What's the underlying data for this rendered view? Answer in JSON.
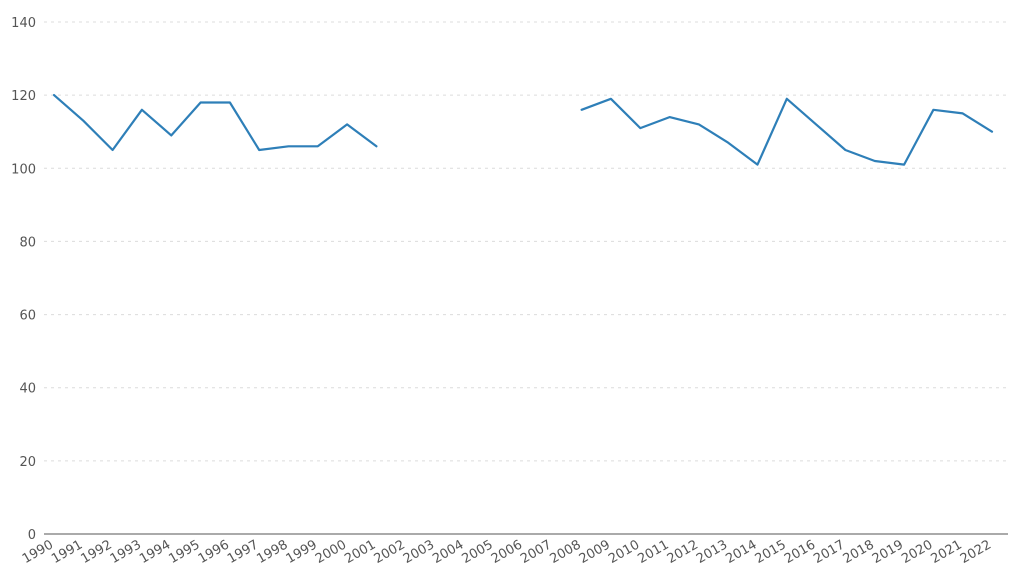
{
  "chart_data": {
    "type": "line",
    "title": "",
    "xlabel": "",
    "ylabel": "",
    "ylim": [
      0,
      140
    ],
    "yticks": [
      0,
      20,
      40,
      60,
      80,
      100,
      120,
      140
    ],
    "grid": true,
    "legend": "none",
    "categories": [
      "1990",
      "1991",
      "1992",
      "1993",
      "1994",
      "1995",
      "1996",
      "1997",
      "1998",
      "1999",
      "2000",
      "2001",
      "2002",
      "2003",
      "2004",
      "2005",
      "2006",
      "2007",
      "2008",
      "2009",
      "2010",
      "2011",
      "2012",
      "2013",
      "2014",
      "2015",
      "2016",
      "2017",
      "2018",
      "2019",
      "2020",
      "2021",
      "2022"
    ],
    "series": [
      {
        "color": "#2e7fb8",
        "values": [
          120,
          113,
          105,
          116,
          109,
          118,
          118,
          105,
          106,
          106,
          112,
          106,
          null,
          null,
          null,
          null,
          null,
          null,
          116,
          119,
          111,
          114,
          112,
          107,
          101,
          119,
          112,
          105,
          102,
          101,
          116,
          115,
          110
        ]
      }
    ]
  }
}
